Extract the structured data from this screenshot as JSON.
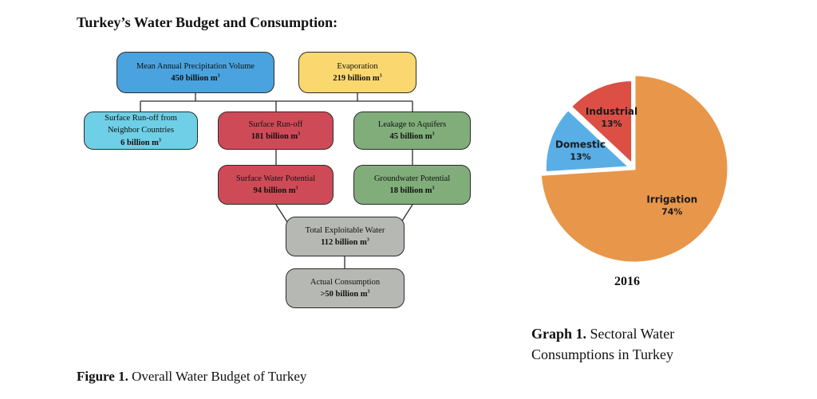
{
  "title": "Turkey’s Water Budget and Consumption:",
  "nodes": {
    "precipitation": {
      "label": "Mean Annual Precipitation Volume",
      "amount": "450 billion m"
    },
    "evaporation": {
      "label": "Evaporation",
      "amount": "219 billion m"
    },
    "neighbor_runoff": {
      "label_line1": "Surface Run-off from",
      "label_line2": "Neighbor Countries",
      "amount": "6 billion m"
    },
    "surface_runoff": {
      "label": "Surface Run-off",
      "amount": "181 billion m"
    },
    "leakage": {
      "label": "Leakage to Aquifers",
      "amount": "45 billion m"
    },
    "surface_potential": {
      "label": "Surface Water Potential",
      "amount": "94 billion m"
    },
    "groundwater_potential": {
      "label": "Groundwater Potential",
      "amount": "18 billion m"
    },
    "exploitable": {
      "label": "Total Exploitable Water",
      "amount": "112 billion m"
    },
    "consumption": {
      "label": "Actual Consumption",
      "amount": ">50 billion m"
    },
    "unit_exponent": "3"
  },
  "colors": {
    "blue": "#4aa3de",
    "yellow": "#fbd86f",
    "cyan": "#6fcfe6",
    "red": "#cf4a57",
    "green": "#80ad7a",
    "gray": "#b6b8b4",
    "irrigation": "#e8964a",
    "domestic": "#5aaee6",
    "industrial": "#db4f45"
  },
  "figure_caption": {
    "prefix": "Figure 1.",
    "text": " Overall Water Budget of Turkey"
  },
  "chart_data": {
    "type": "pie",
    "categories": [
      "Irrigation",
      "Domestic",
      "Industrial"
    ],
    "values": [
      74,
      13,
      13
    ],
    "value_labels": [
      "74%",
      "13%",
      "13%"
    ],
    "colors": [
      "#e8964a",
      "#5aaee6",
      "#db4f45"
    ],
    "exploded": [
      "Domestic",
      "Industrial"
    ],
    "xlabel": "2016"
  },
  "graph_caption": {
    "prefix": "Graph 1.",
    "line1": " Sectoral Water",
    "line2": "Consumptions in Turkey"
  }
}
